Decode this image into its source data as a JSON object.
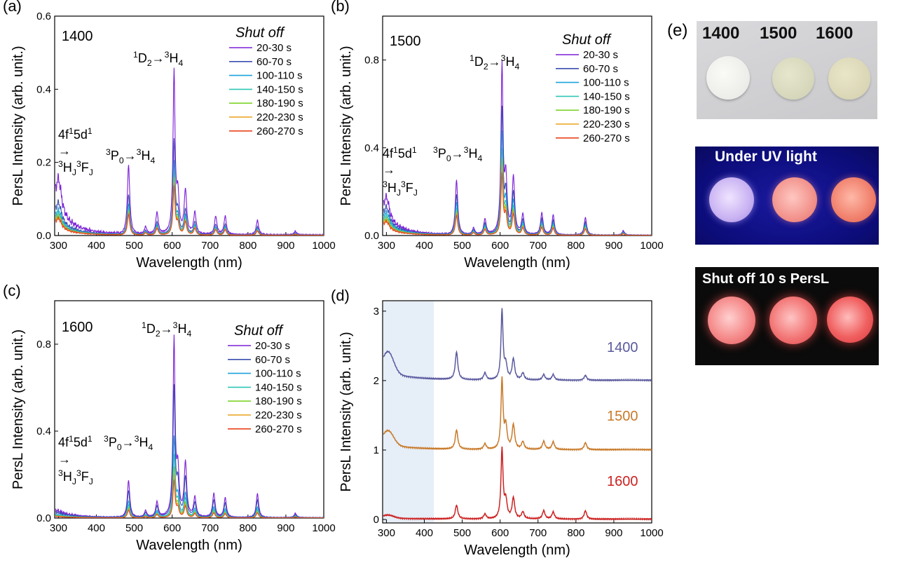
{
  "panels": [
    {
      "letter": "(a)",
      "sample": "1400",
      "legend_title": "Shut off",
      "ann_peak1": [
        "4f",
        "1",
        "5d",
        "1"
      ],
      "ann_arrow": "→",
      "ann_peak1b": [
        "3",
        "H",
        "J",
        "3",
        "F",
        "J"
      ],
      "ann_peak2": [
        "3",
        "P",
        "0",
        "→",
        "3",
        "H",
        "4"
      ],
      "ann_peak3": [
        "1",
        "D",
        "2",
        "→",
        "3",
        "H",
        "4"
      ]
    },
    {
      "letter": "(b)",
      "sample": "1500",
      "legend_title": "Shut off",
      "ann_peak1": [
        "4f",
        "1",
        "5d",
        "1"
      ],
      "ann_arrow": "→",
      "ann_peak1b": [
        "3",
        "H",
        "J",
        "3",
        "F",
        "J"
      ],
      "ann_peak2": [
        "3",
        "P",
        "0",
        "→",
        "3",
        "H",
        "4"
      ],
      "ann_peak3": [
        "1",
        "D",
        "2",
        "→",
        "3",
        "H",
        "4"
      ]
    },
    {
      "letter": "(c)",
      "sample": "1600",
      "legend_title": "Shut off",
      "ann_peak1": [
        "4f",
        "1",
        "5d",
        "1"
      ],
      "ann_arrow": "→",
      "ann_peak1b": [
        "3",
        "H",
        "J",
        "3",
        "F",
        "J"
      ],
      "ann_peak2": [
        "3",
        "P",
        "0",
        "→",
        "3",
        "H",
        "4"
      ],
      "ann_peak3": [
        "1",
        "D",
        "2",
        "→",
        "3",
        "H",
        "4"
      ]
    },
    {
      "letter": "(d)"
    }
  ],
  "colors": {
    "series": [
      "#7b1fd6",
      "#3b4fb0",
      "#1aa3d9",
      "#2cc7b5",
      "#7ed32b",
      "#e8a21c",
      "#e8431c"
    ],
    "d_1400": "#5a5a9e",
    "d_1500": "#c87a2a",
    "d_1600": "#cc2222",
    "d_shade": "#e6eef8"
  },
  "chart_data": [
    {
      "type": "line",
      "panel": "(a)",
      "xlabel": "Wavelength (nm)",
      "ylabel": "PersL Intensity (arb. unit.)",
      "xlim": [
        290,
        1000
      ],
      "ylim": [
        0,
        0.6
      ],
      "xticks": [
        300,
        400,
        500,
        600,
        700,
        800,
        900,
        1000
      ],
      "yticks": [
        0.0,
        0.2,
        0.4,
        0.6
      ],
      "ytick_labels": [
        "0.0",
        "0.2",
        "0.4",
        "0.6"
      ],
      "series": [
        {
          "name": "20-30 s",
          "scale": 1.0
        },
        {
          "name": "60-70 s",
          "scale": 0.58
        },
        {
          "name": "100-110 s",
          "scale": 0.45
        },
        {
          "name": "140-150 s",
          "scale": 0.39
        },
        {
          "name": "180-190 s",
          "scale": 0.35
        },
        {
          "name": "220-230 s",
          "scale": 0.32
        },
        {
          "name": "260-270 s",
          "scale": 0.3
        }
      ],
      "peaks": [
        [
          300,
          0.15
        ],
        [
          485,
          0.19
        ],
        [
          530,
          0.02
        ],
        [
          560,
          0.06
        ],
        [
          605,
          0.44
        ],
        [
          615,
          0.1
        ],
        [
          635,
          0.12
        ],
        [
          660,
          0.06
        ],
        [
          715,
          0.05
        ],
        [
          740,
          0.05
        ],
        [
          825,
          0.04
        ],
        [
          925,
          0.01
        ]
      ],
      "uv_band": [
        0.06,
        290,
        440
      ]
    },
    {
      "type": "line",
      "panel": "(b)",
      "xlabel": "Wavelength (nm)",
      "ylabel": "PersL Intensity (arb. unit.)",
      "xlim": [
        290,
        1000
      ],
      "ylim": [
        0,
        1.0
      ],
      "xticks": [
        300,
        400,
        500,
        600,
        700,
        800,
        900,
        1000
      ],
      "yticks": [
        0.0,
        0.4,
        0.8
      ],
      "ytick_labels": [
        "0.0",
        "0.4",
        "0.8"
      ],
      "series": [
        {
          "name": "20-30 s",
          "scale": 1.0
        },
        {
          "name": "60-70 s",
          "scale": 0.74
        },
        {
          "name": "100-110 s",
          "scale": 0.6
        },
        {
          "name": "140-150 s",
          "scale": 0.5
        },
        {
          "name": "180-190 s",
          "scale": 0.44
        },
        {
          "name": "220-230 s",
          "scale": 0.4
        },
        {
          "name": "260-270 s",
          "scale": 0.36
        }
      ],
      "peaks": [
        [
          300,
          0.17
        ],
        [
          485,
          0.25
        ],
        [
          530,
          0.03
        ],
        [
          560,
          0.07
        ],
        [
          605,
          0.76
        ],
        [
          615,
          0.24
        ],
        [
          635,
          0.26
        ],
        [
          660,
          0.09
        ],
        [
          710,
          0.1
        ],
        [
          740,
          0.09
        ],
        [
          825,
          0.08
        ],
        [
          925,
          0.02
        ]
      ],
      "uv_band": [
        0.07,
        290,
        440
      ]
    },
    {
      "type": "line",
      "panel": "(c)",
      "xlabel": "Wavelength (nm)",
      "ylabel": "PersL Intensity (arb. unit.)",
      "xlim": [
        290,
        1000
      ],
      "ylim": [
        0,
        1.0
      ],
      "xticks": [
        300,
        400,
        500,
        600,
        700,
        800,
        900,
        1000
      ],
      "yticks": [
        0.0,
        0.4,
        0.8
      ],
      "ytick_labels": [
        "0.0",
        "0.4",
        "0.8"
      ],
      "series": [
        {
          "name": "20-30 s",
          "scale": 1.0
        },
        {
          "name": "60-70 s",
          "scale": 0.73
        },
        {
          "name": "100-110 s",
          "scale": 0.45
        },
        {
          "name": "140-150 s",
          "scale": 0.35
        },
        {
          "name": "180-190 s",
          "scale": 0.28
        },
        {
          "name": "220-230 s",
          "scale": 0.24
        },
        {
          "name": "260-270 s",
          "scale": 0.21
        }
      ],
      "peaks": [
        [
          300,
          0.03
        ],
        [
          485,
          0.17
        ],
        [
          530,
          0.03
        ],
        [
          560,
          0.07
        ],
        [
          605,
          0.81
        ],
        [
          615,
          0.2
        ],
        [
          635,
          0.25
        ],
        [
          660,
          0.09
        ],
        [
          710,
          0.11
        ],
        [
          740,
          0.09
        ],
        [
          825,
          0.11
        ],
        [
          925,
          0.02
        ]
      ],
      "uv_band": [
        0.03,
        290,
        440
      ]
    },
    {
      "type": "line",
      "panel": "(d)",
      "xlabel": "Wavelength (nm)",
      "ylabel": "PersL Intensity (arb. unit.)",
      "xlim": [
        290,
        1000
      ],
      "ylim": [
        -0.05,
        3.15
      ],
      "xticks": [
        300,
        400,
        500,
        600,
        700,
        800,
        900,
        1000
      ],
      "yticks": [
        0,
        1,
        2,
        3
      ],
      "ytick_labels": [
        "0",
        "1",
        "2",
        "3"
      ],
      "shaded_range": [
        290,
        425
      ],
      "series": [
        {
          "name": "1400",
          "offset": 2,
          "peaks": [
            [
              305,
              0.3
            ],
            [
              485,
              0.4
            ],
            [
              560,
              0.1
            ],
            [
              605,
              1.0
            ],
            [
              615,
              0.2
            ],
            [
              635,
              0.3
            ],
            [
              660,
              0.1
            ],
            [
              715,
              0.08
            ],
            [
              740,
              0.08
            ],
            [
              825,
              0.07
            ]
          ],
          "uv": 0.12
        },
        {
          "name": "1500",
          "offset": 1,
          "peaks": [
            [
              305,
              0.2
            ],
            [
              485,
              0.28
            ],
            [
              560,
              0.08
            ],
            [
              605,
              1.0
            ],
            [
              615,
              0.32
            ],
            [
              635,
              0.35
            ],
            [
              660,
              0.11
            ],
            [
              715,
              0.12
            ],
            [
              740,
              0.11
            ],
            [
              825,
              0.1
            ]
          ],
          "uv": 0.08
        },
        {
          "name": "1600",
          "offset": 0,
          "peaks": [
            [
              305,
              0.04
            ],
            [
              485,
              0.2
            ],
            [
              560,
              0.07
            ],
            [
              605,
              1.0
            ],
            [
              615,
              0.25
            ],
            [
              635,
              0.3
            ],
            [
              660,
              0.1
            ],
            [
              715,
              0.12
            ],
            [
              740,
              0.1
            ],
            [
              825,
              0.12
            ]
          ],
          "uv": 0.02
        }
      ]
    }
  ],
  "panel_e": {
    "letter": "(e)",
    "photo1_labels": [
      "1400",
      "1500",
      "1600"
    ],
    "photo2_caption": "Under UV light",
    "photo3_caption": "Shut off 10 s PersL"
  }
}
